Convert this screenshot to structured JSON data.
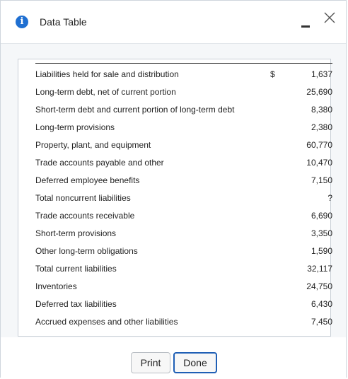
{
  "dialog": {
    "title": "Data Table",
    "icons": {
      "info": "info-icon",
      "minimize": "minimize-icon",
      "close": "close-icon"
    },
    "accent_color": "#1f6fd1"
  },
  "table": {
    "rows": [
      {
        "label": "Liabilities held for sale and distribution",
        "dollar": "$",
        "value": "1,637"
      },
      {
        "label": "Long-term debt, net of current portion",
        "dollar": "",
        "value": "25,690"
      },
      {
        "label": "Short-term debt and current portion of long-term debt",
        "dollar": "",
        "value": "8,380"
      },
      {
        "label": "Long-term provisions",
        "dollar": "",
        "value": "2,380"
      },
      {
        "label": "Property, plant, and equipment",
        "dollar": "",
        "value": "60,770"
      },
      {
        "label": "Trade accounts payable and other",
        "dollar": "",
        "value": "10,470"
      },
      {
        "label": "Deferred employee benefits",
        "dollar": "",
        "value": "7,150"
      },
      {
        "label": "Total noncurrent liabilities",
        "dollar": "",
        "value": "?"
      },
      {
        "label": "Trade accounts receivable",
        "dollar": "",
        "value": "6,690"
      },
      {
        "label": "Short-term provisions",
        "dollar": "",
        "value": "3,350"
      },
      {
        "label": "Other long-term obligations",
        "dollar": "",
        "value": "1,590"
      },
      {
        "label": "Total current liabilities",
        "dollar": "",
        "value": "32,117"
      },
      {
        "label": "Inventories",
        "dollar": "",
        "value": "24,750"
      },
      {
        "label": "Deferred tax liabilities",
        "dollar": "",
        "value": "6,430"
      },
      {
        "label": "Accrued expenses and other liabilities",
        "dollar": "",
        "value": "7,450"
      }
    ]
  },
  "footer": {
    "print_label": "Print",
    "done_label": "Done"
  }
}
